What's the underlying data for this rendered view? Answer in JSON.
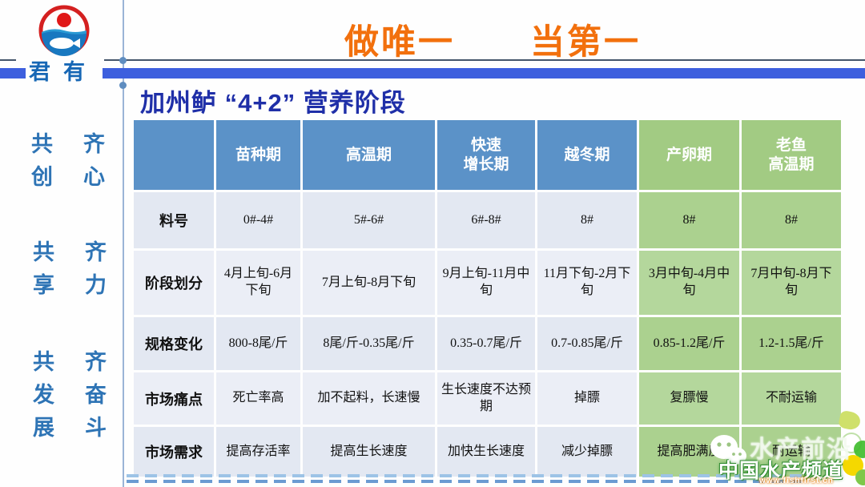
{
  "header": {
    "logo_text": "君有",
    "slogan_left": "做唯一",
    "slogan_right": "当第一"
  },
  "sidebar": {
    "groups": [
      {
        "left": "共创",
        "right": "齐心"
      },
      {
        "left": "共享",
        "right": "齐力"
      },
      {
        "left": "共发展",
        "right": "齐奋斗"
      }
    ]
  },
  "main": {
    "title": "加州鲈 “4+2” 营养阶段"
  },
  "table": {
    "columns": [
      {
        "label": "",
        "type": "blue"
      },
      {
        "label": "苗种期",
        "type": "blue"
      },
      {
        "label": "高温期",
        "type": "blue"
      },
      {
        "label": "快速\n增长期",
        "type": "blue"
      },
      {
        "label": "越冬期",
        "type": "blue"
      },
      {
        "label": "产卵期",
        "type": "green"
      },
      {
        "label": "老鱼\n高温期",
        "type": "green"
      }
    ],
    "rows": [
      {
        "label": "料号",
        "cells": [
          "0#-4#",
          "5#-6#",
          "6#-8#",
          "8#",
          "8#",
          "8#"
        ]
      },
      {
        "label": "阶段划分",
        "cells": [
          "4月上旬-6月下旬",
          "7月上旬-8月下旬",
          "9月上旬-11月中旬",
          "11月下旬-2月下旬",
          "3月中旬-4月中旬",
          "7月中旬-8月下旬"
        ]
      },
      {
        "label": "规格变化",
        "cells": [
          "800-8尾/斤",
          "8尾/斤-0.35尾/斤",
          "0.35-0.7尾/斤",
          "0.7-0.85尾/斤",
          "0.85-1.2尾/斤",
          "1.2-1.5尾/斤"
        ]
      },
      {
        "label": "市场痛点",
        "cells": [
          "死亡率高",
          "加不起料，长速慢",
          "生长速度不达预期",
          "掉膘",
          "复膘慢",
          "不耐运输"
        ]
      },
      {
        "label": "市场需求",
        "cells": [
          "提高存活率",
          "提高生长速度",
          "加快生长速度",
          "减少掉膘",
          "提高肥满度",
          "耐运输"
        ]
      }
    ]
  },
  "watermark": {
    "brand": "水产前沿",
    "channel": "中国水产频道",
    "url": "www.fishfirst.cn"
  },
  "colors": {
    "header_blue": "#5b92c8",
    "header_green": "#a2cb83",
    "accent_orange": "#f2700d",
    "title_blue": "#1f2fa8",
    "bar_blue": "#3d5fde",
    "sidebar_blue": "#2e74b5"
  }
}
